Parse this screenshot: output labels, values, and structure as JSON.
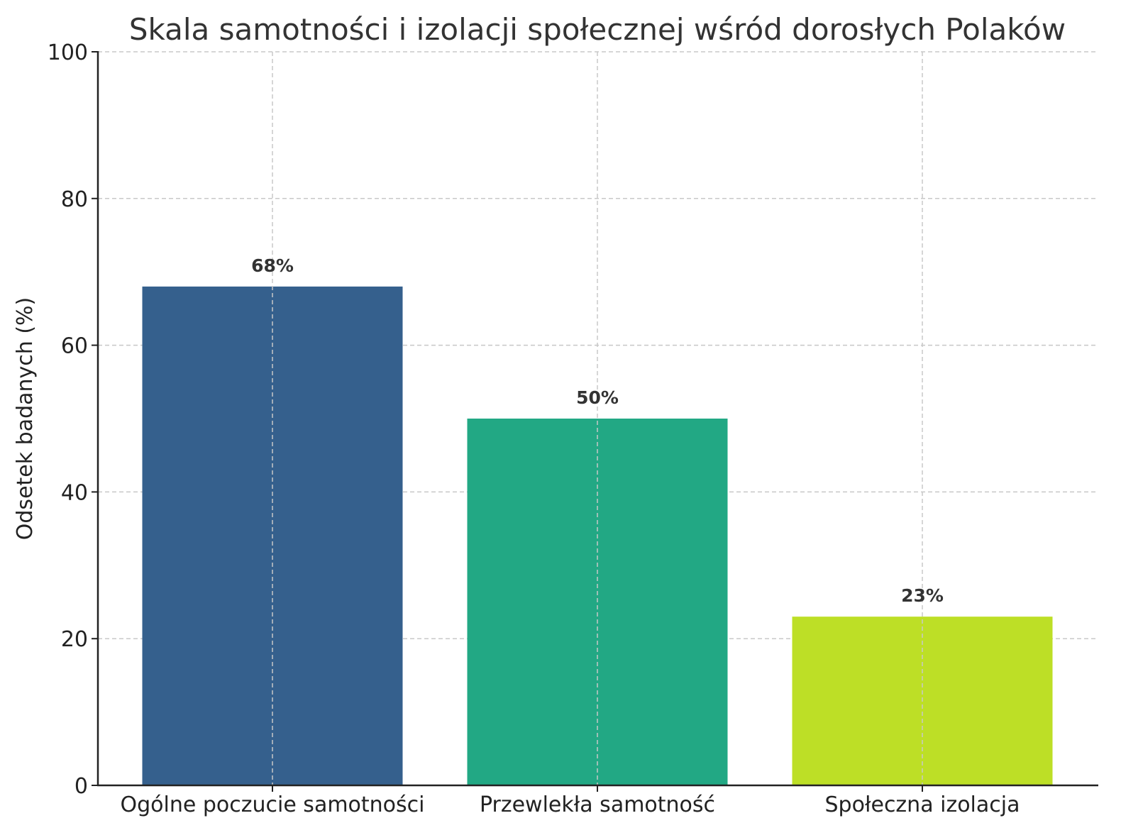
{
  "chart_data": {
    "type": "bar",
    "title": "Skala samotności i izolacji społecznej wśród dorosłych Polaków",
    "xlabel": "",
    "ylabel": "Odsetek badanych (%)",
    "categories": [
      "Ogólne poczucie samotności",
      "Przewlekła samotność",
      "Społeczna izolacja"
    ],
    "values": [
      68,
      50,
      23
    ],
    "data_labels": [
      "68%",
      "50%",
      "23%"
    ],
    "colors": [
      "#35608d",
      "#22a884",
      "#bddf26"
    ],
    "ylim": [
      0,
      100
    ],
    "yticks": [
      0,
      20,
      40,
      60,
      80,
      100
    ],
    "ytick_labels": [
      "0",
      "20",
      "40",
      "60",
      "80",
      "100"
    ],
    "grid": true
  }
}
